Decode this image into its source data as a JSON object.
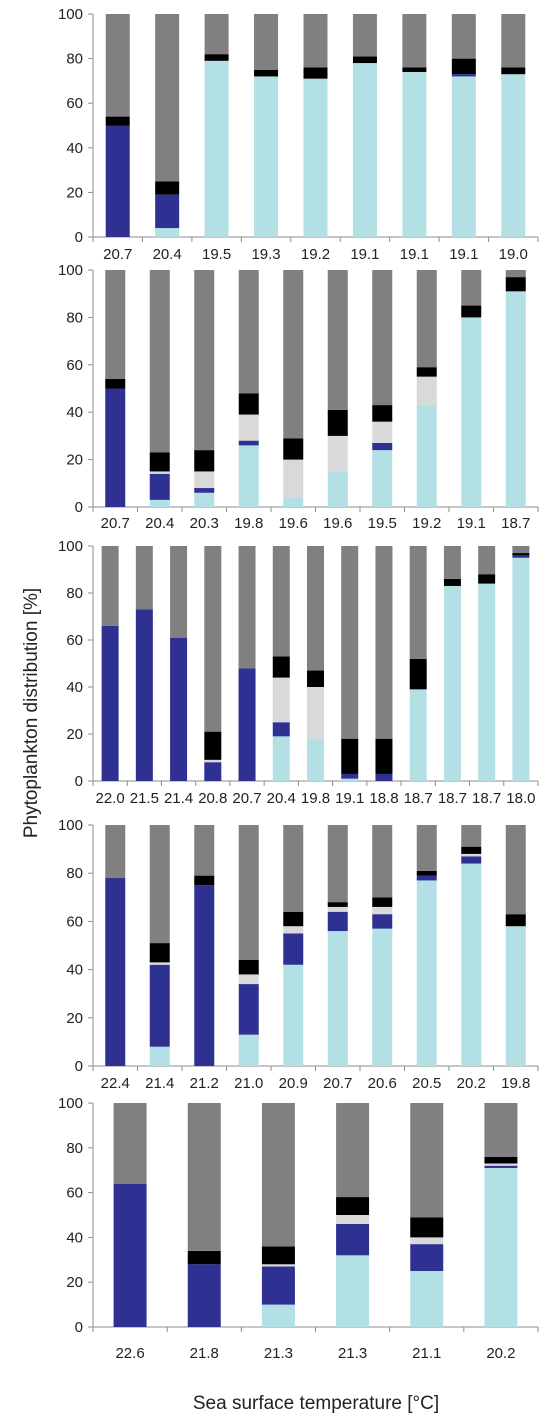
{
  "colors": {
    "light-blue": "#b3e0e4",
    "dark-blue": "#2e3192",
    "light-gray": "#d9d9d9",
    "black": "#000000",
    "gray": "#808080"
  },
  "ylabel": "Phytoplankton distribution [%]",
  "xlabel": "Sea surface temperature [°C]",
  "chart_data": [
    {
      "type": "bar",
      "stacked": true,
      "ylim": [
        0,
        100
      ],
      "yticks": [
        0,
        20,
        40,
        60,
        80,
        100
      ],
      "categories": [
        "20.7",
        "20.4",
        "19.5",
        "19.3",
        "19.2",
        "19.1",
        "19.1",
        "19.1",
        "19.0"
      ],
      "series": [
        {
          "color": "light-blue",
          "values": [
            0,
            4,
            79,
            72,
            71,
            78,
            74,
            72,
            73
          ]
        },
        {
          "color": "dark-blue",
          "values": [
            50,
            15,
            0,
            0,
            0,
            0,
            0,
            1,
            0
          ]
        },
        {
          "color": "light-gray",
          "values": [
            0,
            0,
            0,
            0,
            0,
            0,
            0,
            0,
            0
          ]
        },
        {
          "color": "black",
          "values": [
            4,
            6,
            3,
            3,
            5,
            3,
            2,
            7,
            3
          ]
        },
        {
          "color": "gray",
          "values": [
            46,
            75,
            18,
            25,
            24,
            19,
            24,
            20,
            24
          ]
        }
      ]
    },
    {
      "type": "bar",
      "stacked": true,
      "ylim": [
        0,
        100
      ],
      "yticks": [
        0,
        20,
        40,
        60,
        80,
        100
      ],
      "categories": [
        "20.7",
        "20.4",
        "20.3",
        "19.8",
        "19.6",
        "19.6",
        "19.5",
        "19.2",
        "19.1",
        "18.7"
      ],
      "series": [
        {
          "color": "light-blue",
          "values": [
            0,
            3,
            6,
            26,
            4,
            15,
            24,
            43,
            80,
            91
          ]
        },
        {
          "color": "dark-blue",
          "values": [
            50,
            11,
            2,
            2,
            0,
            0,
            3,
            0,
            0,
            0
          ]
        },
        {
          "color": "light-gray",
          "values": [
            0,
            1,
            7,
            11,
            16,
            15,
            9,
            12,
            0,
            0
          ]
        },
        {
          "color": "black",
          "values": [
            4,
            8,
            9,
            9,
            9,
            11,
            7,
            4,
            5,
            6
          ]
        },
        {
          "color": "gray",
          "values": [
            46,
            77,
            76,
            52,
            71,
            59,
            57,
            41,
            15,
            3
          ]
        }
      ]
    },
    {
      "type": "bar",
      "stacked": true,
      "ylim": [
        0,
        100
      ],
      "yticks": [
        0,
        20,
        40,
        60,
        80,
        100
      ],
      "categories": [
        "22.0",
        "21.5",
        "21.4",
        "20.8",
        "20.7",
        "20.4",
        "19.8",
        "19.1",
        "18.8",
        "18.7",
        "18.7",
        "18.7",
        "18.0"
      ],
      "series": [
        {
          "color": "light-blue",
          "values": [
            0,
            0,
            0,
            0,
            0,
            19,
            18,
            1,
            0,
            39,
            83,
            84,
            95
          ]
        },
        {
          "color": "dark-blue",
          "values": [
            66,
            73,
            61,
            8,
            48,
            6,
            0,
            2,
            3,
            0,
            0,
            0,
            1
          ]
        },
        {
          "color": "light-gray",
          "values": [
            0,
            0,
            0,
            1,
            0,
            19,
            22,
            0,
            0,
            0,
            0,
            0,
            0
          ]
        },
        {
          "color": "black",
          "values": [
            0,
            0,
            0,
            12,
            0,
            9,
            7,
            15,
            15,
            13,
            3,
            4,
            1
          ]
        },
        {
          "color": "gray",
          "values": [
            34,
            27,
            39,
            79,
            52,
            47,
            53,
            82,
            82,
            48,
            14,
            12,
            3
          ]
        }
      ]
    },
    {
      "type": "bar",
      "stacked": true,
      "ylim": [
        0,
        100
      ],
      "yticks": [
        0,
        20,
        40,
        60,
        80,
        100
      ],
      "categories": [
        "22.4",
        "21.4",
        "21.2",
        "21.0",
        "20.9",
        "20.7",
        "20.6",
        "20.5",
        "20.2",
        "19.8"
      ],
      "series": [
        {
          "color": "light-blue",
          "values": [
            0,
            8,
            0,
            13,
            42,
            56,
            57,
            77,
            84,
            58
          ]
        },
        {
          "color": "dark-blue",
          "values": [
            78,
            34,
            75,
            21,
            13,
            8,
            6,
            2,
            3,
            0
          ]
        },
        {
          "color": "light-gray",
          "values": [
            0,
            1,
            0,
            4,
            3,
            2,
            3,
            0,
            1,
            0
          ]
        },
        {
          "color": "black",
          "values": [
            0,
            8,
            4,
            6,
            6,
            2,
            4,
            2,
            3,
            5
          ]
        },
        {
          "color": "gray",
          "values": [
            22,
            49,
            21,
            56,
            36,
            32,
            30,
            19,
            9,
            37
          ]
        }
      ]
    },
    {
      "type": "bar",
      "stacked": true,
      "ylim": [
        0,
        100
      ],
      "yticks": [
        0,
        20,
        40,
        60,
        80,
        100
      ],
      "categories": [
        "22.6",
        "21.8",
        "21.3",
        "21.3",
        "21.1",
        "20.2"
      ],
      "series": [
        {
          "color": "light-blue",
          "values": [
            0,
            0,
            10,
            32,
            25,
            71
          ]
        },
        {
          "color": "dark-blue",
          "values": [
            64,
            28,
            17,
            14,
            12,
            1
          ]
        },
        {
          "color": "light-gray",
          "values": [
            0,
            0,
            1,
            4,
            3,
            1
          ]
        },
        {
          "color": "black",
          "values": [
            0,
            6,
            8,
            8,
            9,
            3
          ]
        },
        {
          "color": "gray",
          "values": [
            36,
            66,
            64,
            42,
            51,
            24
          ]
        }
      ]
    }
  ]
}
